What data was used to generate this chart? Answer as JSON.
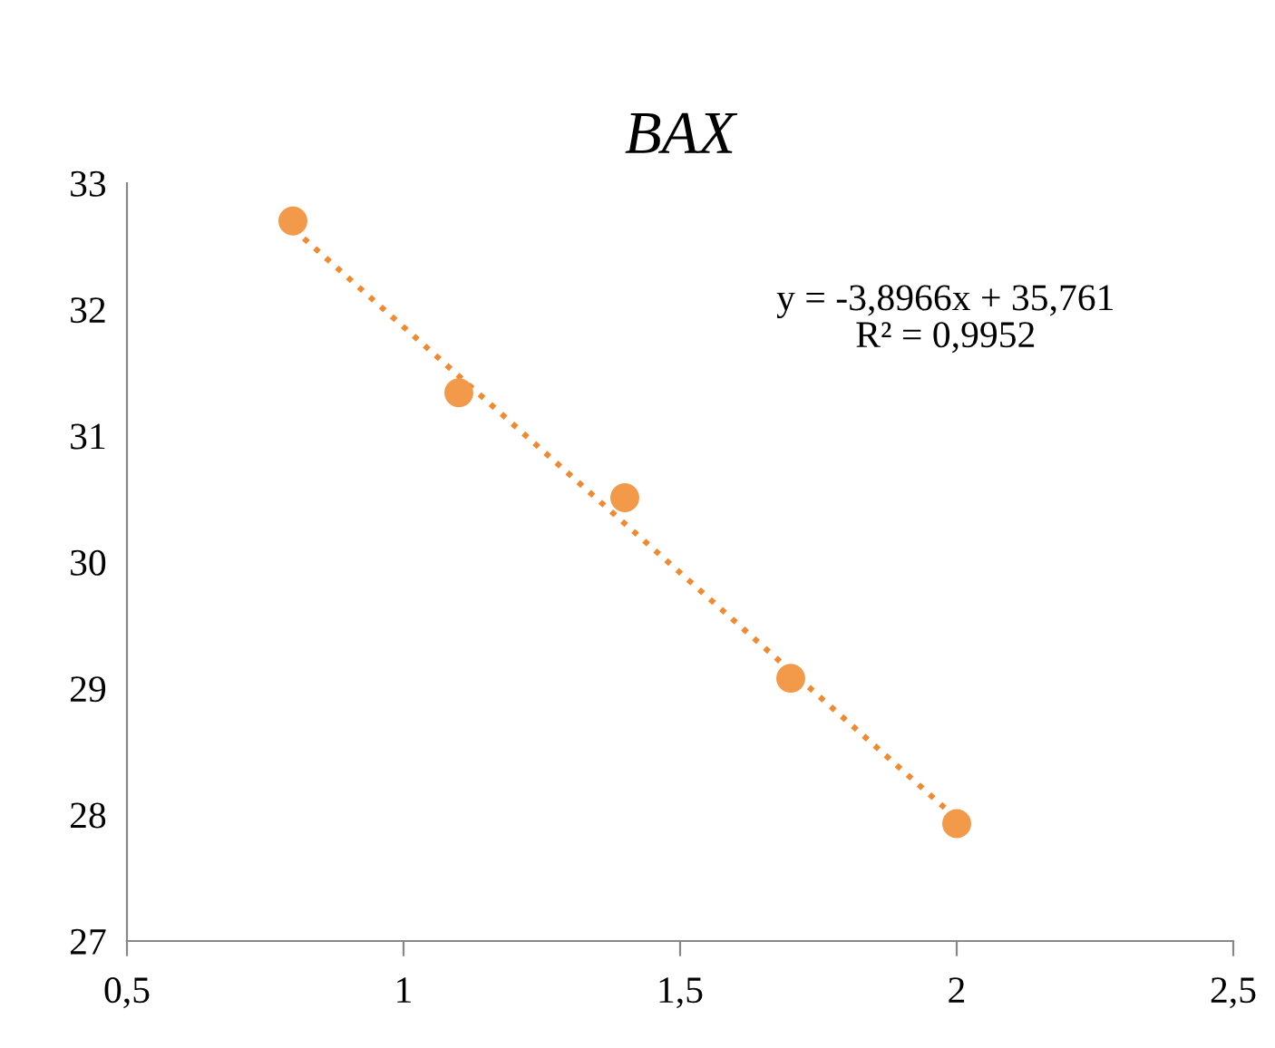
{
  "chart_data": {
    "type": "scatter",
    "title": "BAX",
    "series": [
      {
        "color": "#f39a4a",
        "x": [
          0.8,
          1.1,
          1.4,
          1.7,
          2.0
        ],
        "values": [
          32.7,
          31.34,
          30.51,
          29.08,
          27.93
        ],
        "marker": "circle"
      },
      {
        "type": "line",
        "color": "#f08a30",
        "x": [
          0.8,
          2.0
        ],
        "values": [
          32.64,
          27.97
        ],
        "line_style": "dotted",
        "marker": "none"
      }
    ],
    "xlim": [
      0.5,
      2.5
    ],
    "xticks": [
      {
        "value": 0.5,
        "label": "0,5"
      },
      1,
      {
        "value": 1.5,
        "label": "1,5"
      },
      2,
      {
        "value": 2.5,
        "label": "2,5"
      }
    ],
    "ylim": [
      27,
      33
    ],
    "yticks": [
      27,
      28,
      29,
      30,
      31,
      32,
      33
    ],
    "annotations": [
      "y = -3,8966x + 35,761\nR² = 0,9952"
    ],
    "grid": false,
    "legend": false
  }
}
